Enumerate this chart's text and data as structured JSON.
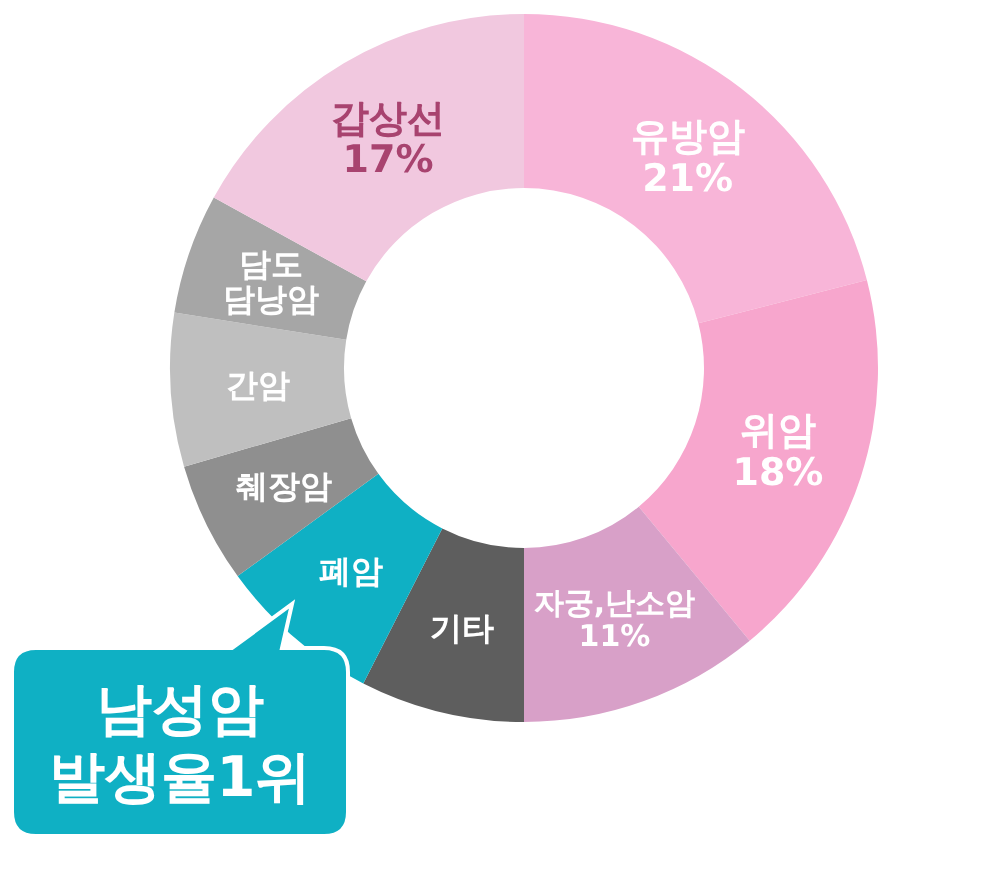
{
  "chart_data": {
    "type": "donut",
    "categories": [
      "유방암",
      "위암",
      "자궁,난소암",
      "기타",
      "폐암",
      "췌장암",
      "간암",
      "담도\n담낭암",
      "갑상선"
    ],
    "values": [
      21,
      18,
      11,
      7.5,
      7.5,
      5.5,
      7,
      5.5,
      17
    ],
    "value_labels": [
      "21%",
      "18%",
      "11%",
      null,
      null,
      null,
      null,
      null,
      "17%"
    ],
    "colors": [
      "#f8b5d8",
      "#f7a6cd",
      "#d8a0c8",
      "#5e5e5e",
      "#0fb0c4",
      "#8f8f8f",
      "#bfbfbf",
      "#a6a6a6",
      "#f1c8df"
    ],
    "annotations": [
      "남성암\n발생율1위"
    ]
  }
}
